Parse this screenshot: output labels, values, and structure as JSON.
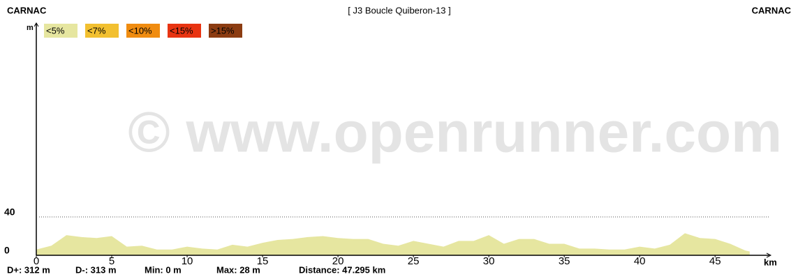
{
  "chart_data": {
    "type": "area",
    "start_label": "CARNAC",
    "title": "[ J3 Boucle Quiberon-13 ]",
    "end_label": "CARNAC",
    "ylabel": "m",
    "xlabel": "km",
    "watermark": "© www.openrunner.com",
    "legend": [
      {
        "label": "<5%",
        "color": "#e6e6a0"
      },
      {
        "label": "<7%",
        "color": "#f2c030"
      },
      {
        "label": "<10%",
        "color": "#f08c10"
      },
      {
        "label": "<15%",
        "color": "#e83412"
      },
      {
        "label": ">15%",
        "color": "#8c3c12"
      }
    ],
    "color": "#e6e6a0",
    "x": [
      0,
      1,
      2,
      3,
      4,
      5,
      6,
      7,
      8,
      9,
      10,
      11,
      12,
      13,
      14,
      15,
      16,
      17,
      18,
      19,
      20,
      21,
      22,
      23,
      24,
      25,
      26,
      27,
      28,
      29,
      30,
      31,
      32,
      33,
      34,
      35,
      36,
      37,
      38,
      39,
      40,
      41,
      42,
      43,
      44,
      45,
      46,
      47,
      47.295
    ],
    "values": [
      6,
      10,
      21,
      19,
      18,
      20,
      9,
      10,
      6,
      6,
      9,
      7,
      6,
      11,
      9,
      13,
      16,
      17,
      19,
      20,
      18,
      17,
      17,
      12,
      10,
      15,
      12,
      9,
      15,
      15,
      21,
      12,
      17,
      17,
      12,
      12,
      7,
      7,
      6,
      6,
      9,
      7,
      11,
      23,
      18,
      17,
      12,
      5,
      4
    ],
    "xlim": [
      0,
      48.6
    ],
    "ylim": [
      0,
      237
    ],
    "xticks": [
      0,
      5,
      10,
      15,
      20,
      25,
      30,
      35,
      40,
      45
    ],
    "yticks": [
      0,
      40
    ],
    "grid": true,
    "stats": [
      "D+: 312 m",
      "D-: 313 m",
      "Min: 0 m",
      "Max: 28 m",
      "Distance: 47.295 km"
    ]
  }
}
